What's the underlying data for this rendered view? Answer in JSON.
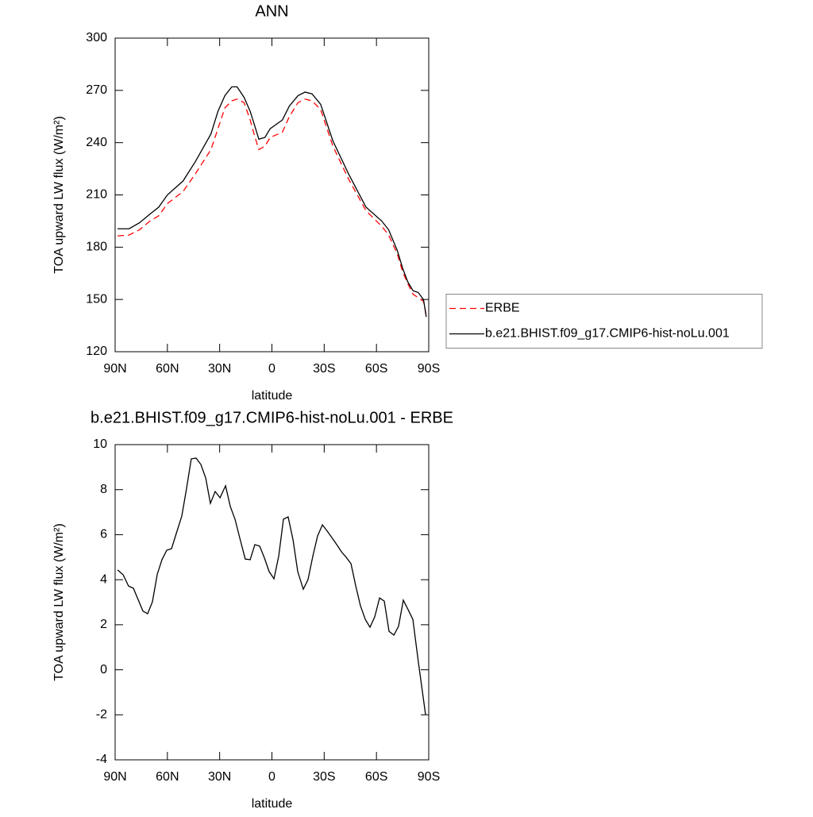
{
  "chart_data": [
    {
      "type": "line",
      "title": "ANN",
      "xlabel": "latitude",
      "ylabel": "TOA upward LW flux (W/m²)",
      "x": [
        88.6,
        82,
        76,
        70,
        65,
        60,
        51,
        44,
        35,
        31,
        27,
        23,
        20,
        16,
        12.5,
        10,
        7.5,
        4,
        1,
        -6,
        -10,
        -15,
        -19,
        -23,
        -28,
        -35,
        -44,
        -54,
        -63,
        -67,
        -72,
        -75,
        -78,
        -81,
        -84,
        -87,
        -88.6
      ],
      "series": [
        {
          "name": "ERBE",
          "color": "#ff0000",
          "line_style": "dashed",
          "values": [
            186.5,
            187,
            190,
            195,
            198,
            205,
            212,
            222,
            236,
            248,
            260,
            264,
            265,
            263,
            253,
            244,
            236,
            238,
            243,
            246,
            255,
            263,
            265,
            264,
            259,
            238,
            219,
            201,
            192,
            187,
            176,
            166,
            159,
            153,
            151,
            149,
            141
          ]
        },
        {
          "name": "b.e21.BHIST.f09_g17.CMIP6-hist-noLu.001",
          "color": "#000000",
          "line_style": "solid",
          "values": [
            190.6,
            190.6,
            194,
            199,
            203,
            210,
            218,
            229,
            245,
            258,
            267,
            272,
            272,
            266,
            258,
            250,
            242,
            243,
            248,
            253,
            261,
            267,
            269,
            268,
            262,
            241,
            222,
            203,
            195,
            190,
            178,
            168,
            160,
            155,
            154,
            150,
            140
          ]
        }
      ],
      "xlim": [
        90,
        -90
      ],
      "xticks": [
        {
          "value": 90,
          "label": "90N"
        },
        {
          "value": 60,
          "label": "60N"
        },
        {
          "value": 30,
          "label": "30N"
        },
        0,
        {
          "value": -30,
          "label": "30S"
        },
        {
          "value": -60,
          "label": "60S"
        },
        {
          "value": -90,
          "label": "90S"
        }
      ],
      "ylim": [
        120,
        300
      ],
      "yticks": [
        120,
        150,
        180,
        210,
        240,
        270,
        300
      ],
      "legend": "outside-right"
    },
    {
      "type": "line",
      "title": "b.e21.BHIST.f09_g17.CMIP6-hist-noLu.001 - ERBE",
      "xlabel": "latitude",
      "ylabel": "TOA upward LW flux (W/m²)",
      "color": "#000000",
      "x": [
        88.6,
        85.4,
        82.3,
        79.5,
        74,
        71.3,
        68.6,
        65.8,
        63.1,
        60.4,
        57.6,
        54.9,
        51.7,
        49,
        46.3,
        43.5,
        40.8,
        38,
        35.3,
        32.6,
        29.8,
        26.6,
        23.9,
        21.2,
        18.4,
        15.3,
        12.5,
        9.8,
        7,
        4.3,
        1.6,
        -1.2,
        -3.9,
        -6.6,
        -9.3,
        -12.1,
        -14.8,
        -18,
        -20.7,
        -23.5,
        -26.2,
        -29,
        -31.7,
        -34.4,
        -37.2,
        -39.9,
        -42.6,
        -45.4,
        -48.1,
        -50.8,
        -53.6,
        -56.3,
        -59,
        -61.8,
        -64.5,
        -67.2,
        -70,
        -72.7,
        -75.4,
        -78.2,
        -80.9,
        -84.1,
        -88.2
      ],
      "values": [
        4.43,
        4.22,
        3.72,
        3.62,
        2.6,
        2.49,
        3.02,
        4.25,
        4.89,
        5.31,
        5.38,
        6.05,
        6.83,
        8.06,
        9.37,
        9.4,
        9.12,
        8.52,
        7.39,
        7.92,
        7.64,
        8.17,
        7.25,
        6.69,
        5.84,
        4.92,
        4.89,
        5.56,
        5.49,
        4.96,
        4.36,
        4.04,
        5.06,
        6.69,
        6.79,
        5.77,
        4.36,
        3.58,
        4.0,
        5.06,
        5.94,
        6.44,
        6.16,
        5.87,
        5.56,
        5.24,
        5.0,
        4.71,
        3.72,
        2.84,
        2.24,
        1.89,
        2.35,
        3.19,
        3.05,
        1.71,
        1.54,
        1.93,
        3.09,
        2.67,
        2.24,
        0.3,
        -1.99
      ],
      "xlim": [
        90,
        -90
      ],
      "xticks": [
        {
          "value": 90,
          "label": "90N"
        },
        {
          "value": 60,
          "label": "60N"
        },
        {
          "value": 30,
          "label": "30N"
        },
        0,
        {
          "value": -30,
          "label": "30S"
        },
        {
          "value": -60,
          "label": "60S"
        },
        {
          "value": -90,
          "label": "90S"
        }
      ],
      "ylim": [
        -4,
        10
      ],
      "yticks": [
        -4,
        -2,
        0,
        2,
        4,
        6,
        8,
        10
      ]
    }
  ]
}
